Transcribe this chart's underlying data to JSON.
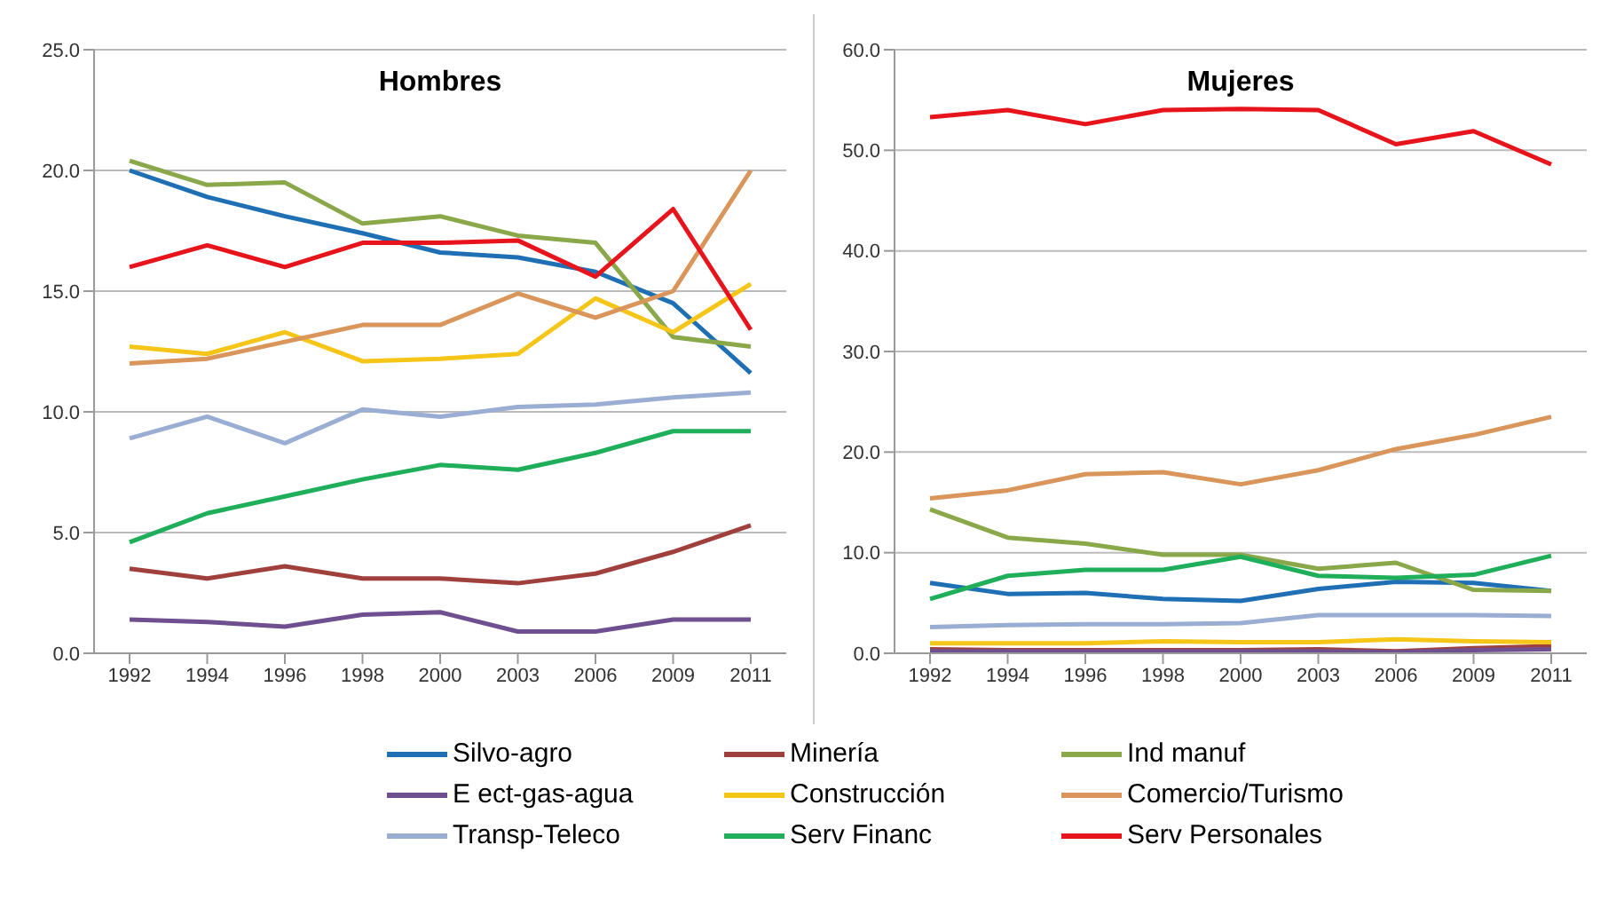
{
  "chart_data": [
    {
      "type": "line",
      "title": "Hombres",
      "categories": [
        "1992",
        "1994",
        "1996",
        "1998",
        "2000",
        "2003",
        "2006",
        "2009",
        "2011"
      ],
      "ylim": [
        0,
        25
      ],
      "yticks": [
        {
          "value": 0,
          "label": "0.0"
        },
        {
          "value": 5,
          "label": "5.0"
        },
        {
          "value": 10,
          "label": "10.0"
        },
        {
          "value": 15,
          "label": "15.0"
        },
        {
          "value": 20,
          "label": "20.0"
        },
        {
          "value": 25,
          "label": "25.0"
        }
      ],
      "grid": "y",
      "legend": "bottom",
      "marker": "none",
      "line_style": "solid",
      "series": [
        {
          "name": "Silvo-agro",
          "color": "#1f6fb5",
          "values": [
            20.0,
            18.9,
            18.1,
            17.4,
            16.6,
            16.4,
            15.8,
            14.5,
            11.6
          ]
        },
        {
          "name": "Minería",
          "color": "#a0403c",
          "values": [
            3.5,
            3.1,
            3.6,
            3.1,
            3.1,
            2.9,
            3.3,
            4.2,
            5.3
          ]
        },
        {
          "name": "Ind manuf",
          "color": "#8aa84a",
          "values": [
            20.4,
            19.4,
            19.5,
            17.8,
            18.1,
            17.3,
            17.0,
            13.1,
            12.7
          ]
        },
        {
          "name": "E ect-gas-agua",
          "color": "#6f4f8f",
          "values": [
            1.4,
            1.3,
            1.1,
            1.6,
            1.7,
            0.9,
            0.9,
            1.4,
            1.4
          ]
        },
        {
          "name": "Construcción",
          "color": "#f5c518",
          "values": [
            12.7,
            12.4,
            13.3,
            12.1,
            12.2,
            12.4,
            14.7,
            13.3,
            15.3
          ]
        },
        {
          "name": "Comercio/Turismo",
          "color": "#d9955a",
          "values": [
            12.0,
            12.2,
            12.9,
            13.6,
            13.6,
            14.9,
            13.9,
            15.0,
            20.0
          ]
        },
        {
          "name": "Transp-Teleco",
          "color": "#9aaed4",
          "values": [
            8.9,
            9.8,
            8.7,
            10.1,
            9.8,
            10.2,
            10.3,
            10.6,
            10.8
          ]
        },
        {
          "name": "Serv Financ",
          "color": "#1fae5a",
          "values": [
            4.6,
            5.8,
            6.5,
            7.2,
            7.8,
            7.6,
            8.3,
            9.2,
            9.2
          ]
        },
        {
          "name": "Serv Personales",
          "color": "#e8141c",
          "values": [
            16.0,
            16.9,
            16.0,
            17.0,
            17.0,
            17.1,
            15.6,
            18.4,
            13.4
          ]
        }
      ]
    },
    {
      "type": "line",
      "title": "Mujeres",
      "categories": [
        "1992",
        "1994",
        "1996",
        "1998",
        "2000",
        "2003",
        "2006",
        "2009",
        "2011"
      ],
      "ylim": [
        0,
        60
      ],
      "yticks": [
        {
          "value": 0,
          "label": "0.0"
        },
        {
          "value": 10,
          "label": "10.0"
        },
        {
          "value": 20,
          "label": "20.0"
        },
        {
          "value": 30,
          "label": "30.0"
        },
        {
          "value": 40,
          "label": "40.0"
        },
        {
          "value": 50,
          "label": "50.0"
        },
        {
          "value": 60,
          "label": "60.0"
        }
      ],
      "grid": "y",
      "marker": "none",
      "line_style": "solid",
      "series": [
        {
          "color": "#1f6fb5",
          "values": [
            7.0,
            5.9,
            6.0,
            5.4,
            5.2,
            6.4,
            7.1,
            7.0,
            6.2
          ]
        },
        {
          "color": "#a0403c",
          "values": [
            0.4,
            0.3,
            0.3,
            0.3,
            0.3,
            0.4,
            0.2,
            0.5,
            0.7
          ]
        },
        {
          "color": "#8aa84a",
          "values": [
            14.3,
            11.5,
            10.9,
            9.8,
            9.8,
            8.4,
            9.0,
            6.3,
            6.2
          ]
        },
        {
          "color": "#6f4f8f",
          "values": [
            0.2,
            0.2,
            0.2,
            0.2,
            0.2,
            0.2,
            0.1,
            0.3,
            0.4
          ]
        },
        {
          "color": "#f5c518",
          "values": [
            1.0,
            1.0,
            1.0,
            1.2,
            1.1,
            1.1,
            1.4,
            1.2,
            1.1
          ]
        },
        {
          "color": "#d9955a",
          "values": [
            15.4,
            16.2,
            17.8,
            18.0,
            16.8,
            18.2,
            20.3,
            21.7,
            23.5
          ]
        },
        {
          "color": "#9aaed4",
          "values": [
            2.6,
            2.8,
            2.9,
            2.9,
            3.0,
            3.8,
            3.8,
            3.8,
            3.7
          ]
        },
        {
          "color": "#1fae5a",
          "values": [
            5.4,
            7.7,
            8.3,
            8.3,
            9.6,
            7.7,
            7.5,
            7.8,
            9.7
          ]
        },
        {
          "color": "#e8141c",
          "values": [
            53.3,
            54.0,
            52.6,
            54.0,
            54.1,
            54.0,
            50.6,
            51.9,
            48.6
          ]
        }
      ]
    }
  ]
}
